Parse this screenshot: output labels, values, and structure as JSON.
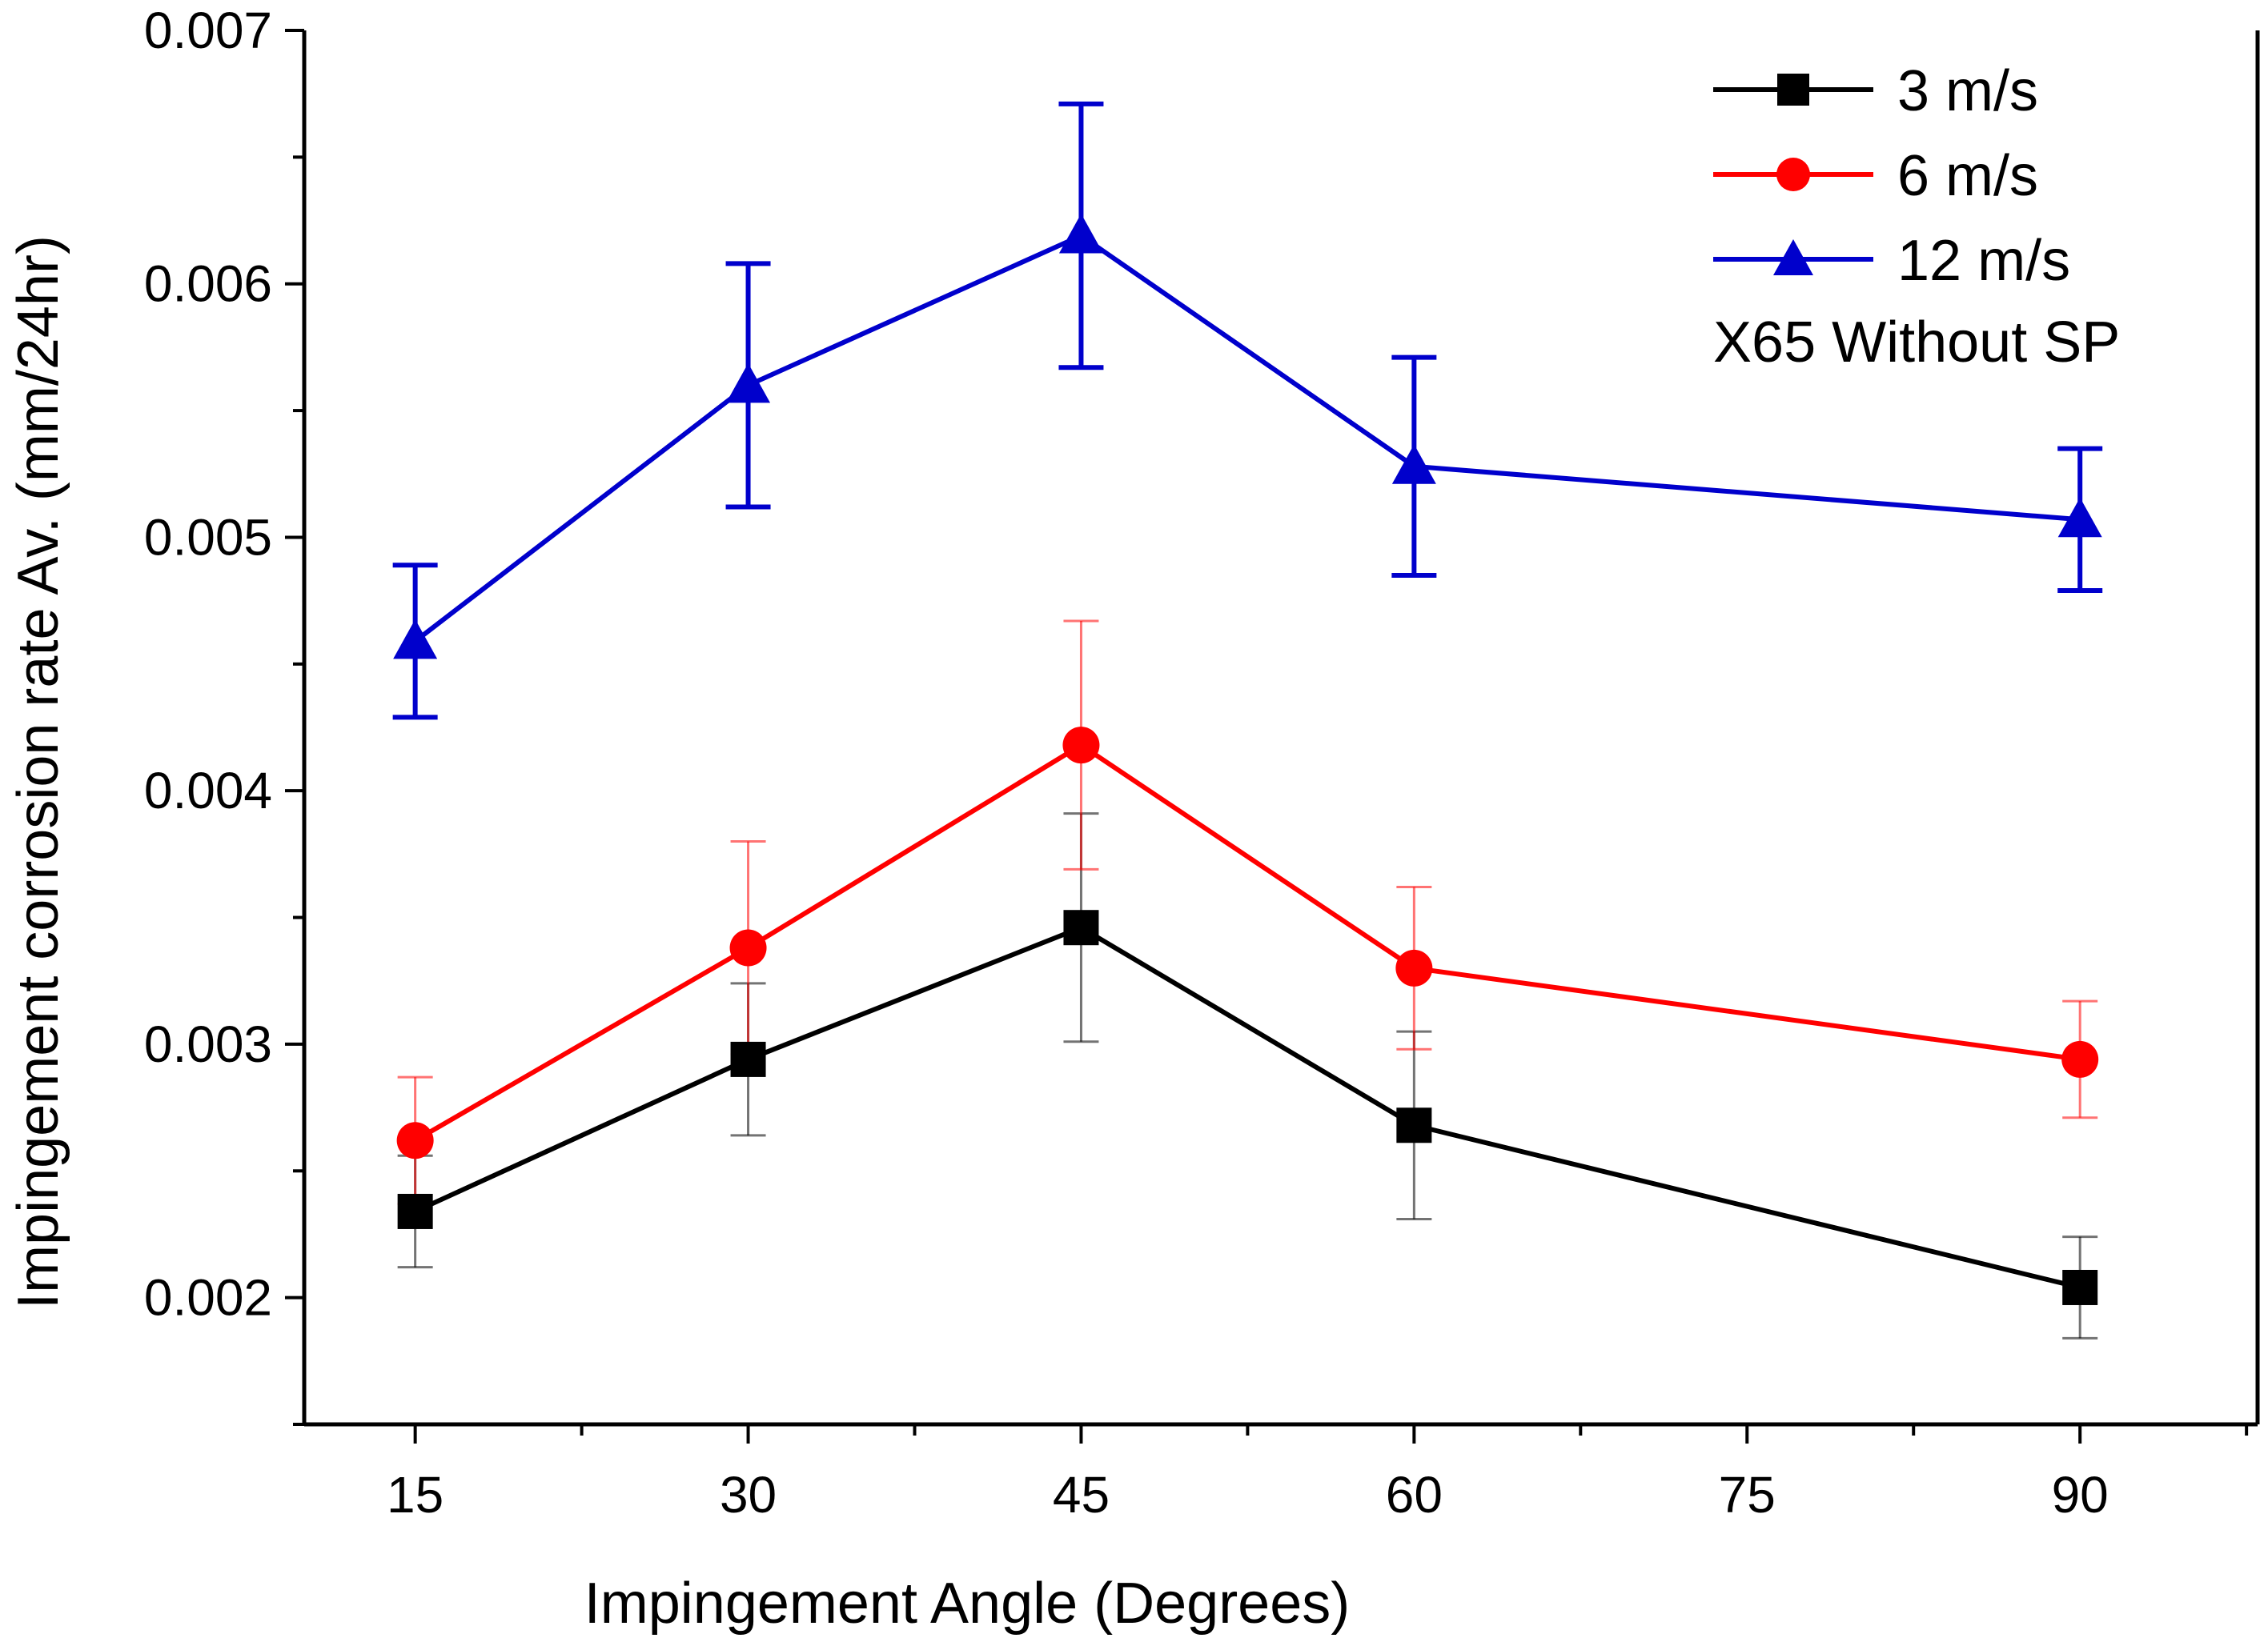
{
  "chart_data": {
    "type": "line",
    "xlabel": "Impingement Angle (Degrees)",
    "ylabel": "Impingement corrosion rate Av. (mm/24hr)",
    "xlim": [
      10,
      98
    ],
    "ylim": [
      0.0015,
      0.007
    ],
    "x_ticks": [
      15,
      30,
      45,
      60,
      75,
      90
    ],
    "y_ticks": [
      0.002,
      0.003,
      0.004,
      0.005,
      0.006,
      0.007
    ],
    "x_tick_labels": [
      "15",
      "30",
      "45",
      "60",
      "75",
      "90"
    ],
    "y_tick_labels": [
      "0.002",
      "0.003",
      "0.004",
      "0.005",
      "0.006",
      "0.007"
    ],
    "x": [
      15,
      30,
      45,
      60,
      90
    ],
    "legend_position": "top-right",
    "annotation": "X65 Without SP",
    "grid": false,
    "series": [
      {
        "name": "3 m/s",
        "color": "#000000",
        "marker": "square",
        "values": [
          0.00234,
          0.00294,
          0.00346,
          0.00268,
          0.00204
        ],
        "error": [
          0.00022,
          0.0003,
          0.00045,
          0.00037,
          0.0002
        ]
      },
      {
        "name": "6 m/s",
        "color": "#ff0000",
        "marker": "circle",
        "values": [
          0.00262,
          0.00338,
          0.00418,
          0.0033,
          0.00294
        ],
        "error": [
          0.00025,
          0.00042,
          0.00049,
          0.00032,
          0.00023
        ]
      },
      {
        "name": "12 m/s",
        "color": "#0000cc",
        "marker": "triangle",
        "values": [
          0.00459,
          0.0056,
          0.00619,
          0.00528,
          0.00507
        ],
        "error": [
          0.0003,
          0.00048,
          0.00052,
          0.00043,
          0.00028
        ]
      }
    ]
  }
}
